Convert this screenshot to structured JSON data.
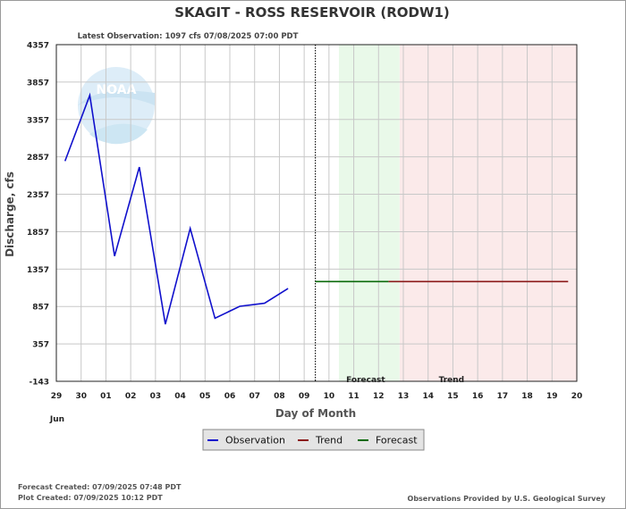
{
  "chart_data": {
    "type": "line",
    "title": "SKAGIT - ROSS RESERVOIR  (RODW1)",
    "subtitle": "Latest Observation: 1097 cfs 07/08/2025 07:00 PDT",
    "xlabel": "Day of Month",
    "ylabel": "Discharge, cfs",
    "month_label": "Jun",
    "ylim": [
      -143,
      4357
    ],
    "yticks": [
      -143,
      357,
      857,
      1357,
      1857,
      2357,
      2857,
      3357,
      3857,
      4357
    ],
    "xticks": [
      "29",
      "30",
      "01",
      "02",
      "03",
      "04",
      "05",
      "06",
      "07",
      "08",
      "09",
      "10",
      "11",
      "12",
      "13",
      "14",
      "15",
      "16",
      "17",
      "18",
      "19",
      "20"
    ],
    "grid": true,
    "regions": [
      {
        "label": "Forecast",
        "from_day_index": 11.4,
        "to_day_index": 13.85,
        "color": "#e9f9e9"
      },
      {
        "label": "Trend",
        "from_day_index": 13.85,
        "to_day_index": 21,
        "color": "#fbeaea"
      }
    ],
    "now_marker_day_index": 10.45,
    "series": [
      {
        "name": "Observation",
        "color": "#1010cc",
        "x": [
          0.35,
          1.35,
          2.35,
          3.35,
          4.4,
          5.4,
          6.4,
          7.4,
          8.4,
          9.35
        ],
        "values": [
          2800,
          3680,
          1530,
          2720,
          620,
          1900,
          700,
          860,
          900,
          1097
        ]
      },
      {
        "name": "Trend",
        "color": "#8b1a1a",
        "x": [
          13.4,
          20.65
        ],
        "values": [
          1190,
          1190
        ]
      },
      {
        "name": "Forecast",
        "color": "#0a6a0a",
        "x": [
          10.45,
          13.4
        ],
        "values": [
          1190,
          1190
        ]
      }
    ],
    "legend": {
      "placement": "bottom-center",
      "items": [
        "Observation",
        "Trend",
        "Forecast"
      ]
    }
  },
  "logo": {
    "text": "NOAA"
  },
  "footer": {
    "forecast_created": "Forecast Created: 07/09/2025 07:48 PDT",
    "plot_created": "Plot Created: 07/09/2025 10:12 PDT",
    "source": "Observations Provided by U.S. Geological Survey"
  }
}
